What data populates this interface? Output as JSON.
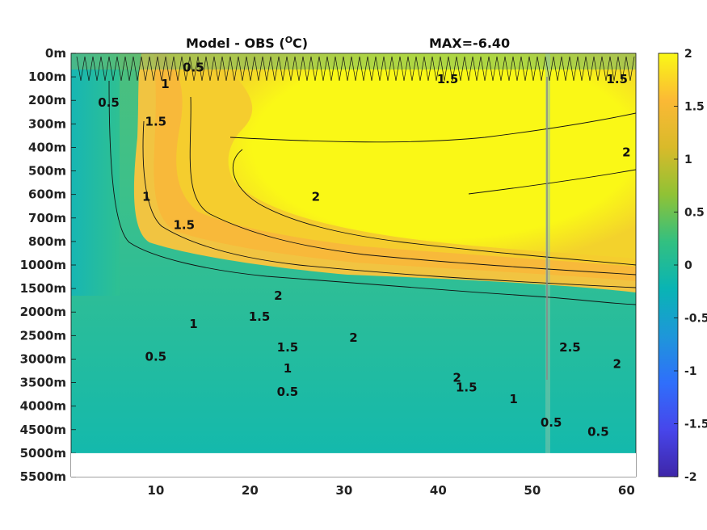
{
  "chart_data": {
    "type": "heatmap",
    "title": "Model - OBS (",
    "title_unit_base": "C)",
    "title_superscript": "O",
    "max_text": "MAX=-6.40",
    "xlim": [
      1,
      61
    ],
    "x_ticks": [
      10,
      20,
      30,
      40,
      50,
      60
    ],
    "y_tick_labels": [
      "0m",
      "100m",
      "200m",
      "300m",
      "400m",
      "500m",
      "600m",
      "700m",
      "800m",
      "1000m",
      "1500m",
      "2000m",
      "2500m",
      "3000m",
      "3500m",
      "4000m",
      "4500m",
      "5000m",
      "5500m"
    ],
    "y_data_max_label": "5000m",
    "colorbar": {
      "min": -2,
      "max": 2,
      "ticks": [
        "2",
        "1.5",
        "1",
        "0.5",
        "0",
        "-0.5",
        "-1",
        "-1.5",
        "-2"
      ],
      "colormap": [
        "#3e26a8",
        "#4746eb",
        "#2f6ffb",
        "#1e97d9",
        "#09b4b4",
        "#33c080",
        "#90c235",
        "#d9ba2a",
        "#fbb935",
        "#faf816"
      ]
    },
    "contour_levels": [
      "0.5",
      "1",
      "1.5",
      "2",
      "2.5"
    ],
    "contour_labels": [
      {
        "text": "0.5",
        "x": 24,
        "y": 14.4
      },
      {
        "text": "1",
        "x": 24,
        "y": 13.4
      },
      {
        "text": "1.5",
        "x": 24,
        "y": 12.5
      },
      {
        "text": "0.5",
        "x": 52,
        "y": 15.7
      },
      {
        "text": "0.5",
        "x": 57,
        "y": 16.1
      },
      {
        "text": "1",
        "x": 48,
        "y": 14.7
      },
      {
        "text": "1.5",
        "x": 43,
        "y": 14.2
      },
      {
        "text": "2",
        "x": 42,
        "y": 13.8
      },
      {
        "text": "2",
        "x": 59,
        "y": 13.2
      },
      {
        "text": "2.5",
        "x": 54,
        "y": 12.5
      },
      {
        "text": "1.5",
        "x": 21,
        "y": 11.2
      },
      {
        "text": "2",
        "x": 31,
        "y": 12.1
      },
      {
        "text": "1",
        "x": 14,
        "y": 11.5
      },
      {
        "text": "0.5",
        "x": 10,
        "y": 12.9
      },
      {
        "text": "2",
        "x": 23,
        "y": 10.3
      },
      {
        "text": "2",
        "x": 27,
        "y": 6.1
      },
      {
        "text": "2",
        "x": 60,
        "y": 4.2
      },
      {
        "text": "1.5",
        "x": 13,
        "y": 7.3
      },
      {
        "text": "1",
        "x": 9,
        "y": 6.1
      },
      {
        "text": "1.5",
        "x": 10,
        "y": 2.9
      },
      {
        "text": "1",
        "x": 11,
        "y": 1.3
      },
      {
        "text": "0.5",
        "x": 14,
        "y": 0.6
      },
      {
        "text": "0.5",
        "x": 5,
        "y": 2.1
      },
      {
        "text": "1.5",
        "x": 41,
        "y": 1.1
      },
      {
        "text": "1.5",
        "x": 59,
        "y": 1.1
      }
    ]
  }
}
